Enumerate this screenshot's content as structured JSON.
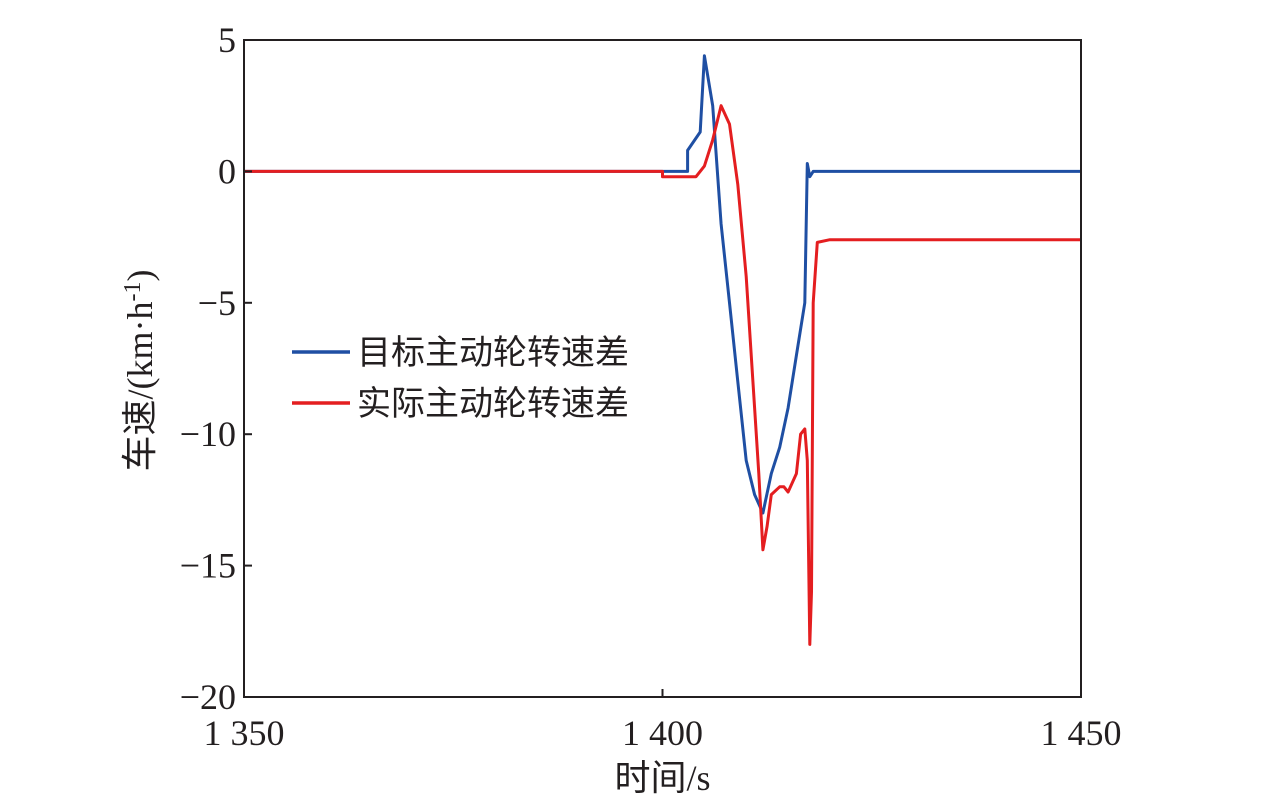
{
  "chart_data": {
    "type": "line",
    "xlabel": "时间/s",
    "ylabel_main": "车速/(km·h",
    "ylabel_sup": "-1",
    "ylabel_close": ")",
    "xlim": [
      1350,
      1450
    ],
    "ylim": [
      -20,
      5
    ],
    "x_ticks": [
      1350,
      1400,
      1450
    ],
    "x_tick_labels": [
      "1 350",
      "1 400",
      "1 450"
    ],
    "y_ticks": [
      5,
      0,
      -5,
      -10,
      -15,
      -20
    ],
    "y_tick_labels": [
      "5",
      "0",
      "−5",
      "−10",
      "−15",
      "−20"
    ],
    "legend_position": "center-left",
    "series": [
      {
        "name": "目标主动轮转速差",
        "color": "#1f4fa3",
        "points": [
          [
            1350,
            0
          ],
          [
            1403,
            0
          ],
          [
            1403,
            0.8
          ],
          [
            1404.5,
            1.5
          ],
          [
            1405,
            4.4
          ],
          [
            1406,
            2.5
          ],
          [
            1407,
            -2
          ],
          [
            1408,
            -5
          ],
          [
            1409,
            -8
          ],
          [
            1410,
            -11
          ],
          [
            1411,
            -12.3
          ],
          [
            1412,
            -13
          ],
          [
            1413,
            -11.5
          ],
          [
            1414,
            -10.5
          ],
          [
            1415,
            -9
          ],
          [
            1416,
            -7
          ],
          [
            1417,
            -5
          ],
          [
            1417.3,
            0.3
          ],
          [
            1417.6,
            -0.2
          ],
          [
            1418,
            0
          ],
          [
            1450,
            0
          ]
        ]
      },
      {
        "name": "实际主动轮转速差",
        "color": "#e41e20",
        "points": [
          [
            1350,
            0
          ],
          [
            1400,
            0
          ],
          [
            1400,
            -0.2
          ],
          [
            1404,
            -0.2
          ],
          [
            1405,
            0.2
          ],
          [
            1406,
            1.2
          ],
          [
            1407,
            2.5
          ],
          [
            1408,
            1.8
          ],
          [
            1409,
            -0.5
          ],
          [
            1410,
            -4
          ],
          [
            1411,
            -9
          ],
          [
            1411.5,
            -11.5
          ],
          [
            1412,
            -14.4
          ],
          [
            1412.5,
            -13.5
          ],
          [
            1413,
            -12.3
          ],
          [
            1414,
            -12
          ],
          [
            1414.5,
            -12
          ],
          [
            1415,
            -12.2
          ],
          [
            1416,
            -11.5
          ],
          [
            1416.5,
            -10
          ],
          [
            1417,
            -9.8
          ],
          [
            1417.3,
            -11
          ],
          [
            1417.6,
            -18
          ],
          [
            1417.8,
            -16
          ],
          [
            1418,
            -5
          ],
          [
            1418.5,
            -2.7
          ],
          [
            1420,
            -2.6
          ],
          [
            1450,
            -2.6
          ]
        ]
      }
    ]
  }
}
